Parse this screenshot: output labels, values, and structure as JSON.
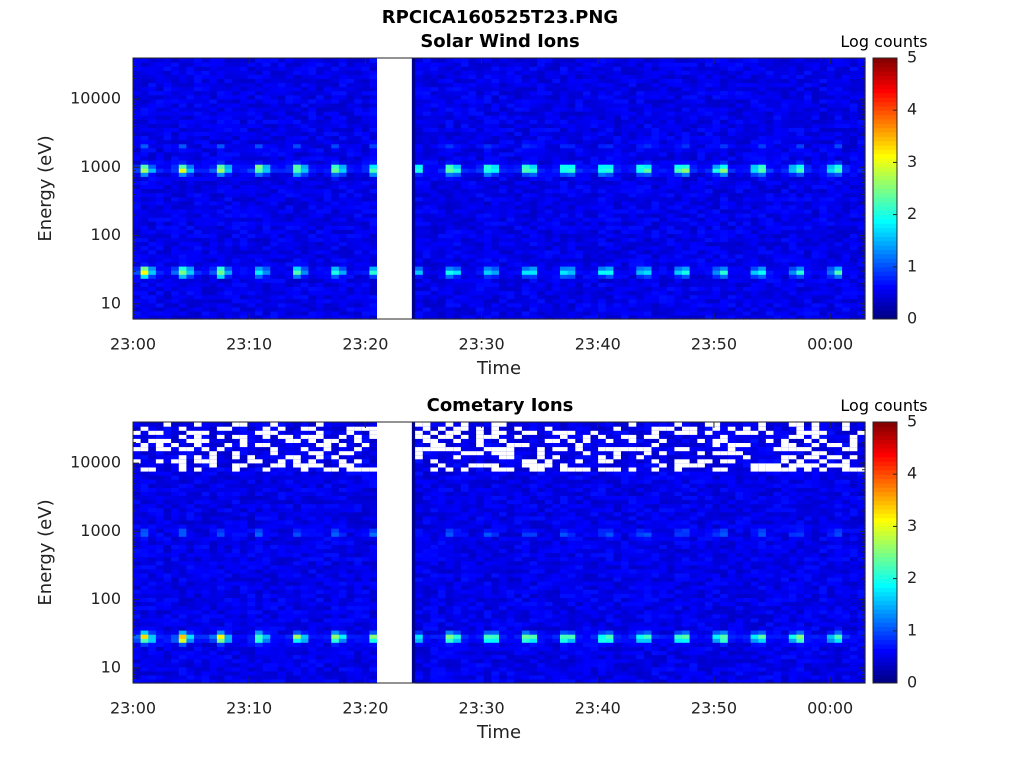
{
  "figure": {
    "title": "RPCICA160525T23.PNG"
  },
  "chart_data": [
    {
      "type": "heatmap",
      "title": "Solar Wind Ions",
      "xlabel": "Time",
      "ylabel": "Energy (eV)",
      "yscale": "log",
      "ylim": [
        6,
        40000
      ],
      "x_ticks": [
        "23:00",
        "23:10",
        "23:20",
        "23:30",
        "23:40",
        "23:50",
        "00:00"
      ],
      "y_ticks": [
        10,
        100,
        1000,
        10000
      ],
      "y_tick_labels": [
        "10",
        "100",
        "1000",
        "10000"
      ],
      "xlim_minutes": [
        0,
        63
      ],
      "data_gap_minutes": [
        21,
        24
      ],
      "colorbar": {
        "label": "Log counts",
        "range": [
          0,
          5
        ],
        "ticks": [
          "0",
          "1",
          "2",
          "3",
          "4",
          "5"
        ],
        "colormap": "jet"
      },
      "bands": [
        {
          "energy_eV": 30,
          "peak_log_counts": 3.0,
          "description": "low-energy band"
        },
        {
          "energy_eV": 950,
          "peak_log_counts": 2.9,
          "description": "solar wind peak"
        }
      ],
      "colors": {
        "background": "#00008f",
        "gap": "#ffffff"
      }
    },
    {
      "type": "heatmap",
      "title": "Cometary Ions",
      "xlabel": "Time",
      "ylabel": "Energy (eV)",
      "yscale": "log",
      "ylim": [
        6,
        40000
      ],
      "x_ticks": [
        "23:00",
        "23:10",
        "23:20",
        "23:30",
        "23:40",
        "23:50",
        "00:00"
      ],
      "y_ticks": [
        10,
        100,
        1000,
        10000
      ],
      "y_tick_labels": [
        "10",
        "100",
        "1000",
        "10000"
      ],
      "xlim_minutes": [
        0,
        63
      ],
      "data_gap_minutes": [
        21,
        24
      ],
      "colorbar": {
        "label": "Log counts",
        "range": [
          0,
          5
        ],
        "ticks": [
          "0",
          "1",
          "2",
          "3",
          "4",
          "5"
        ],
        "colormap": "jet"
      },
      "bands": [
        {
          "energy_eV": 28,
          "peak_log_counts": 3.3,
          "description": "low-energy cometary ions"
        },
        {
          "energy_eV": 950,
          "peak_log_counts": 1.2,
          "description": "weak ~1 keV signal"
        }
      ],
      "colors": {
        "background": "#00008f",
        "gap": "#ffffff"
      }
    }
  ]
}
